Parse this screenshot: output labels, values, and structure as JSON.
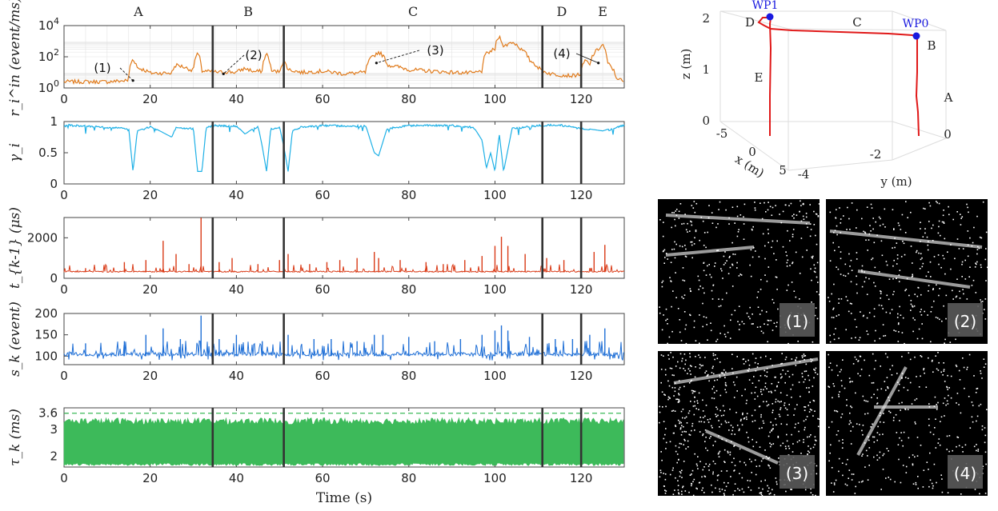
{
  "chart_data": [
    {
      "type": "line",
      "ylabel": "r_i^in (event/ms)",
      "yscale": "log",
      "ylim": [
        1,
        10000
      ],
      "yticks": [
        "10^0",
        "10^2",
        "10^4"
      ],
      "xlim": [
        0,
        130
      ],
      "xticks": [
        "0",
        "20",
        "40",
        "60",
        "80",
        "100",
        "120"
      ],
      "segment_labels": [
        "A",
        "B",
        "C",
        "D",
        "E"
      ],
      "segment_boundaries": [
        34.5,
        51,
        111,
        120
      ],
      "annotations": [
        "(1)",
        "(2)",
        "(3)",
        "(4)"
      ],
      "color": "#e07b1c",
      "series": [
        {
          "x": [
            0,
            5,
            10,
            15,
            16,
            17,
            20,
            25,
            26,
            30,
            31,
            32,
            34,
            36,
            38,
            40,
            42,
            44,
            46,
            47,
            48,
            50,
            51,
            52,
            55,
            60,
            65,
            70,
            72,
            73,
            75,
            80,
            85,
            90,
            95,
            97,
            98,
            100,
            101,
            102,
            104,
            106,
            108,
            110,
            111,
            113,
            115,
            118,
            120,
            121,
            122,
            124,
            125,
            126,
            128,
            130
          ],
          "values": [
            2.5,
            2.5,
            2.5,
            3,
            70,
            20,
            9,
            9,
            30,
            12,
            150,
            12,
            11,
            10,
            11,
            10,
            18,
            11,
            12,
            150,
            12,
            11,
            50,
            15,
            10,
            12,
            8,
            10,
            120,
            200,
            30,
            15,
            12,
            10,
            9,
            12,
            150,
            300,
            2000,
            400,
            900,
            300,
            60,
            20,
            12,
            8,
            7,
            6,
            8,
            60,
            25,
            300,
            600,
            40,
            5,
            2
          ]
        }
      ]
    },
    {
      "type": "line",
      "ylabel": "γ_i",
      "ylim": [
        0,
        1
      ],
      "yticks": [
        "0",
        "0.5",
        "1"
      ],
      "xlim": [
        0,
        130
      ],
      "color": "#1eb0e6",
      "series": [
        {
          "x": [
            0,
            15,
            16,
            17,
            20,
            25,
            26,
            30,
            31,
            32,
            33,
            35,
            40,
            42,
            45,
            46,
            47,
            48,
            50,
            51,
            52,
            53,
            55,
            60,
            70,
            72,
            73,
            75,
            80,
            90,
            95,
            97,
            98,
            99,
            100,
            101,
            102,
            104,
            110,
            115,
            120,
            125,
            130
          ],
          "values": [
            0.96,
            0.9,
            0.2,
            0.85,
            0.93,
            0.75,
            0.92,
            0.9,
            0.2,
            0.2,
            0.92,
            0.95,
            0.94,
            0.8,
            0.94,
            0.6,
            0.2,
            0.9,
            0.92,
            0.6,
            0.2,
            0.85,
            0.93,
            0.95,
            0.94,
            0.5,
            0.45,
            0.9,
            0.95,
            0.95,
            0.92,
            0.7,
            0.25,
            0.5,
            0.2,
            0.8,
            0.2,
            0.9,
            0.95,
            0.96,
            0.9,
            0.85,
            0.96
          ]
        }
      ]
    },
    {
      "type": "line",
      "ylabel": "t_{k-1} (μs)",
      "ylim": [
        0,
        3000
      ],
      "yticks": [
        "0",
        "2000"
      ],
      "xlim": [
        0,
        130
      ],
      "color": "#d93a16",
      "series": [
        {
          "x": [
            5,
            14,
            19,
            23,
            26,
            29,
            31.8,
            36,
            39,
            45,
            50,
            52,
            57,
            61,
            64,
            68,
            72,
            73,
            78,
            84,
            88,
            93,
            97,
            100,
            101.5,
            103,
            107,
            112,
            116,
            120,
            123,
            125.5
          ],
          "values": [
            500,
            800,
            900,
            1850,
            1200,
            700,
            3000,
            800,
            1000,
            700,
            900,
            1200,
            700,
            800,
            900,
            1000,
            1300,
            1000,
            900,
            800,
            700,
            900,
            1100,
            1600,
            2050,
            1600,
            1200,
            1000,
            900,
            1200,
            1300,
            1650
          ]
        }
      ]
    },
    {
      "type": "line",
      "ylabel": "s_k (event)",
      "ylim": [
        80,
        200
      ],
      "yticks": [
        "100",
        "150",
        "200"
      ],
      "xlim": [
        0,
        130
      ],
      "color": "#1f6fd6",
      "series": [
        {
          "x": [
            5,
            14,
            19,
            23,
            27,
            31.8,
            36,
            40,
            46,
            52,
            58,
            62,
            68,
            72,
            74,
            80,
            86,
            92,
            97,
            100,
            101.5,
            103,
            108,
            114,
            118,
            122,
            125.5
          ],
          "values": [
            130,
            135,
            150,
            165,
            140,
            195,
            140,
            150,
            135,
            150,
            140,
            140,
            135,
            150,
            150,
            145,
            135,
            140,
            150,
            160,
            172,
            160,
            145,
            140,
            140,
            150,
            165
          ]
        }
      ]
    },
    {
      "type": "area",
      "ylabel": "τ_k (ms)",
      "ylim": [
        1.6,
        3.8
      ],
      "yticks": [
        "2",
        "3",
        "3.6"
      ],
      "threshold": 3.6,
      "xlim": [
        0,
        130
      ],
      "xlabel": "Time (s)",
      "color": "#3dba5a",
      "series": [
        {
          "band": [
            1.75,
            3.3
          ]
        }
      ]
    },
    {
      "type": "line3d",
      "xlabel": "x (m)",
      "ylabel": "y (m)",
      "zlabel": "z (m)",
      "waypoints": [
        "WP0",
        "WP1"
      ],
      "segment_labels": [
        "A",
        "B",
        "C",
        "D",
        "E"
      ],
      "z_ticks": [
        "0",
        "1",
        "2"
      ],
      "x_ticks": [
        "-5",
        "0",
        "5"
      ],
      "y_ticks": [
        "-4",
        "-2",
        "0"
      ],
      "color": "#e01818"
    }
  ],
  "image_panels": [
    {
      "label": "(1)"
    },
    {
      "label": "(2)"
    },
    {
      "label": "(3)"
    },
    {
      "label": "(4)"
    }
  ]
}
